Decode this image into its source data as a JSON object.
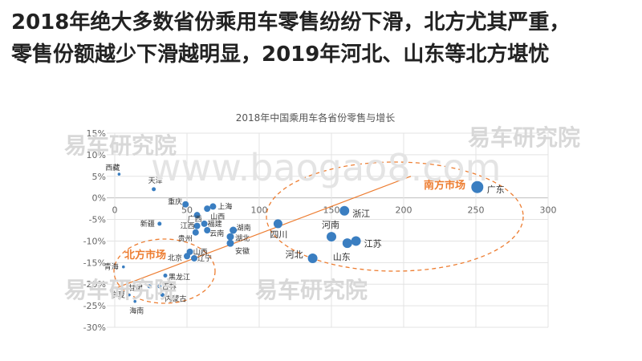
{
  "headline": {
    "line1": "2018年绝大多数省份乘用车零售纷纷下滑，北方尤其严重，",
    "line2": "零售份额越少下滑越明显，2019年河北、山东等北方堪忧"
  },
  "watermarks": {
    "brand": "易车研究院",
    "site": "www.baogao8.com"
  },
  "chart_data": {
    "type": "scatter",
    "title": "2018年中国乘用车各省份零售与增长",
    "xlim": [
      0,
      300
    ],
    "ylim": [
      -30,
      15
    ],
    "x_ticks": [
      0,
      50,
      100,
      150,
      200,
      250,
      300
    ],
    "y_ticks": [
      15,
      10,
      5,
      0,
      -5,
      -10,
      -15,
      -20,
      -25,
      -30
    ],
    "x_tick_labels": [
      "0",
      "50",
      "100",
      "150",
      "200",
      "250",
      "300"
    ],
    "y_tick_labels": [
      "15%",
      "10%",
      "5%",
      "0%",
      "-5%",
      "-10%",
      "-15%",
      "-20%",
      "-25%",
      "-30%"
    ],
    "grid": true,
    "legend": "none",
    "marker_color": "#3a7ec1",
    "trendline": {
      "color": "#ed7d31",
      "from": [
        0,
        -21
      ],
      "to": [
        205,
        5
      ]
    },
    "points": [
      {
        "label": "西藏",
        "x": 3,
        "y": 5.5
      },
      {
        "label": "天津",
        "x": 27,
        "y": 2
      },
      {
        "label": "重庆",
        "x": 49,
        "y": -1.5
      },
      {
        "label": "上海",
        "x": 68,
        "y": -2
      },
      {
        "label": "山西",
        "x": 64,
        "y": -2.5
      },
      {
        "label": "广西",
        "x": 57,
        "y": -4
      },
      {
        "label": "新疆",
        "x": 31,
        "y": -6
      },
      {
        "label": "江西",
        "x": 57,
        "y": -6.5
      },
      {
        "label": "福建",
        "x": 62,
        "y": -6
      },
      {
        "label": "云南",
        "x": 64,
        "y": -7.5
      },
      {
        "label": "湖南",
        "x": 82,
        "y": -7.5
      },
      {
        "label": "贵州",
        "x": 56,
        "y": -8
      },
      {
        "label": "湖北",
        "x": 80,
        "y": -9
      },
      {
        "label": "安徽",
        "x": 80,
        "y": -10.5
      },
      {
        "label": "四川",
        "x": 113,
        "y": -6
      },
      {
        "label": "山西",
        "x": 52,
        "y": -12.5
      },
      {
        "label": "北京",
        "x": 50,
        "y": -13.5
      },
      {
        "label": "辽宁",
        "x": 55,
        "y": -14
      },
      {
        "label": "青海",
        "x": 6,
        "y": -16
      },
      {
        "label": "黑龙江",
        "x": 35,
        "y": -18
      },
      {
        "label": "甘肃",
        "x": 24,
        "y": -20.5
      },
      {
        "label": "吉林",
        "x": 31,
        "y": -20.5
      },
      {
        "label": "宁夏",
        "x": 10,
        "y": -22.5
      },
      {
        "label": "内蒙古",
        "x": 33,
        "y": -22.5
      },
      {
        "label": "海南",
        "x": 14,
        "y": -24
      },
      {
        "label": "广东",
        "x": 251,
        "y": 2.5
      },
      {
        "label": "浙江",
        "x": 159,
        "y": -3
      },
      {
        "label": "河南",
        "x": 150,
        "y": -9
      },
      {
        "label": "江苏",
        "x": 167,
        "y": -10
      },
      {
        "label": "山东",
        "x": 161,
        "y": -10.5
      },
      {
        "label": "河北",
        "x": 137,
        "y": -14
      }
    ],
    "annotations": [
      {
        "text": "南方市场",
        "color": "#ed7d31"
      },
      {
        "text": "北方市场",
        "color": "#ed7d31"
      }
    ]
  }
}
